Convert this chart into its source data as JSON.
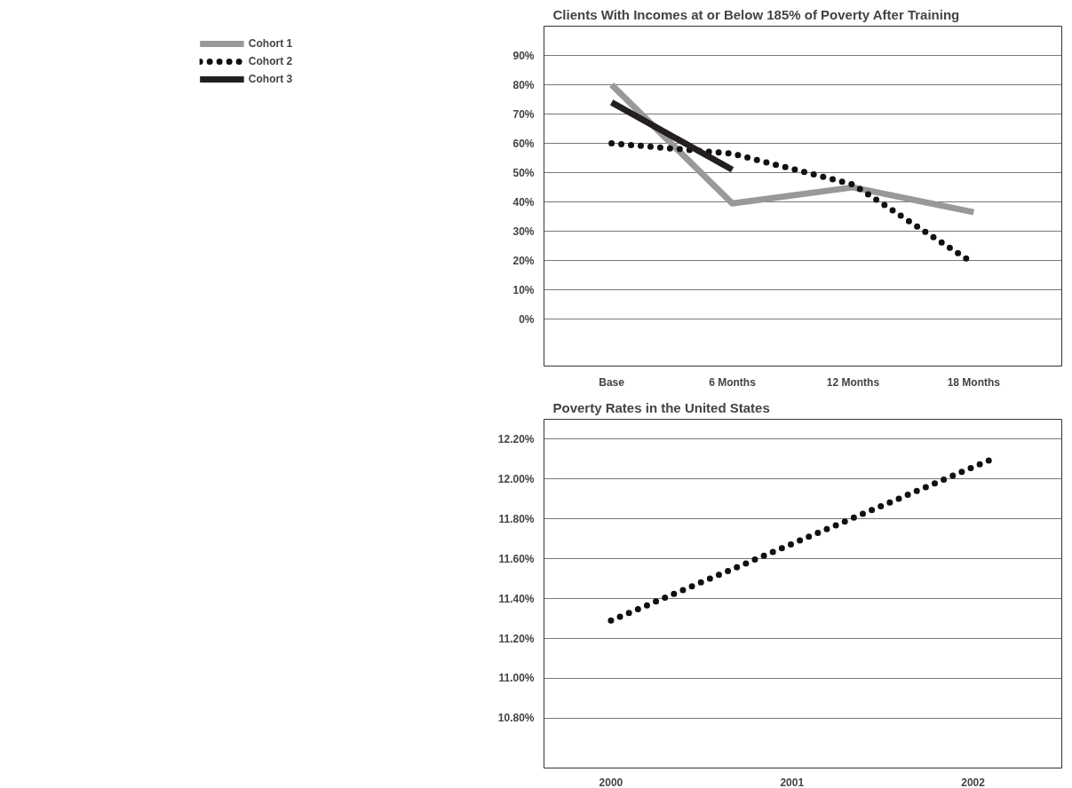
{
  "chart_data": [
    {
      "type": "line",
      "title": "Clients With Incomes at or Below 185% of Poverty After Training",
      "categories": [
        "Base",
        "6 Months",
        "12 Months",
        "18 Months"
      ],
      "series": [
        {
          "name": "Cohort 1",
          "color": "#999999",
          "line_style": "solid",
          "values": [
            80,
            39.5,
            45,
            36.5
          ]
        },
        {
          "name": "Cohort 2",
          "color": "#111111",
          "line_style": "dotted",
          "values": [
            60,
            56.5,
            46,
            19
          ]
        },
        {
          "name": "Cohort 3",
          "color": "#231f20",
          "line_style": "solid",
          "values": [
            74,
            51,
            null,
            null
          ]
        }
      ],
      "ylim": [
        -16,
        100
      ],
      "yticks": [
        {
          "value": 0,
          "label": "0%"
        },
        {
          "value": 10,
          "label": "10%"
        },
        {
          "value": 20,
          "label": "20%"
        },
        {
          "value": 30,
          "label": "30%"
        },
        {
          "value": 40,
          "label": "40%"
        },
        {
          "value": 50,
          "label": "50%"
        },
        {
          "value": 60,
          "label": "60%"
        },
        {
          "value": 70,
          "label": "70%"
        },
        {
          "value": 80,
          "label": "80%"
        },
        {
          "value": 90,
          "label": "90%"
        }
      ],
      "grid": "y",
      "legend": "left"
    },
    {
      "type": "line",
      "title": "Poverty Rates in the United States",
      "x": [
        2000,
        2002.13
      ],
      "series": [
        {
          "color": "#111111",
          "line_style": "dotted",
          "values": [
            11.29,
            12.11
          ]
        }
      ],
      "xlim": [
        1999.63,
        2002.49
      ],
      "xticks": [
        2000,
        2001,
        2002
      ],
      "ylim": [
        10.55,
        12.3
      ],
      "yticks": [
        {
          "value": 10.8,
          "label": "10.80%"
        },
        {
          "value": 11.0,
          "label": "11.00%"
        },
        {
          "value": 11.2,
          "label": "11.20%"
        },
        {
          "value": 11.4,
          "label": "11.40%"
        },
        {
          "value": 11.6,
          "label": "11.60%"
        },
        {
          "value": 11.8,
          "label": "11.80%"
        },
        {
          "value": 12.0,
          "label": "12.00%"
        },
        {
          "value": 12.2,
          "label": "12.20%"
        }
      ],
      "grid": "y"
    }
  ]
}
